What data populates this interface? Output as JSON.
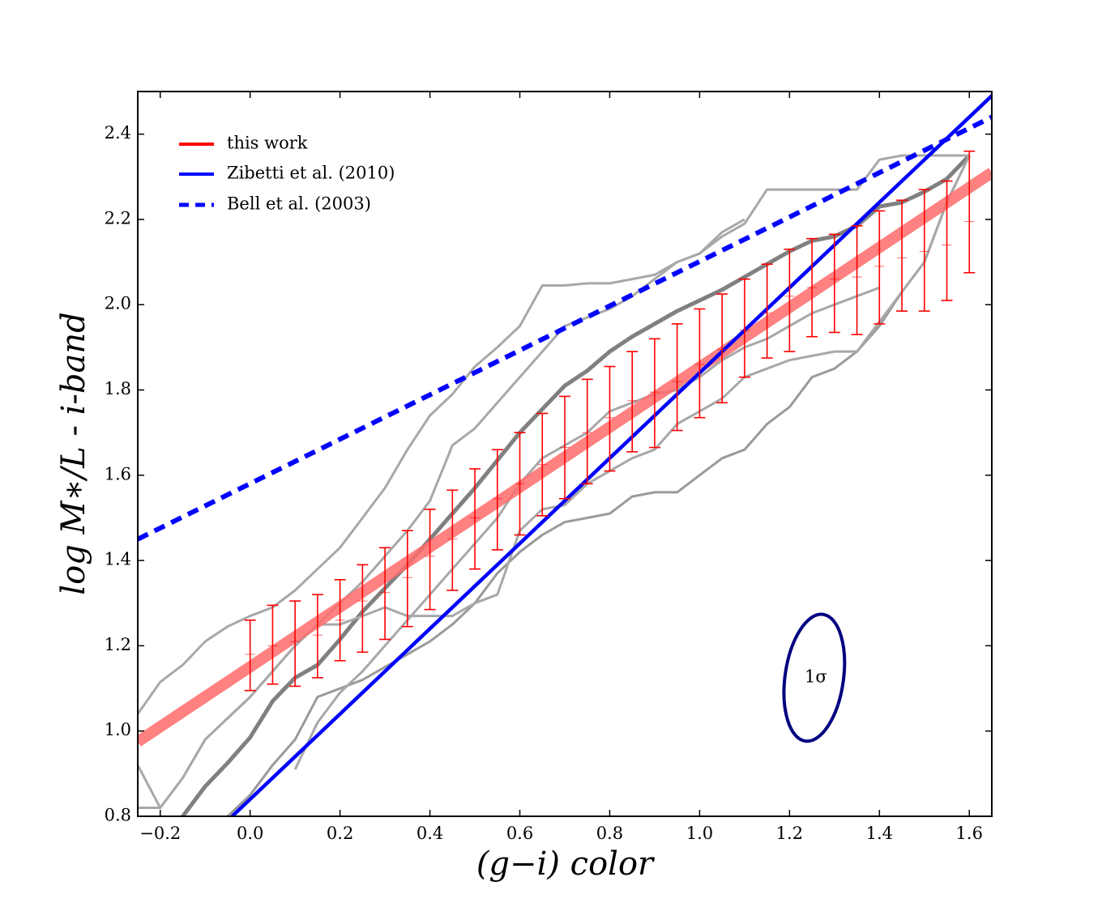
{
  "chart_data": {
    "type": "line",
    "title": "",
    "xlabel": "(g−i) color",
    "ylabel": "log M∗/L - i-band",
    "xlim": [
      -0.25,
      1.65
    ],
    "ylim": [
      0.8,
      2.5
    ],
    "xticks": [
      -0.2,
      0.0,
      0.2,
      0.4,
      0.6,
      0.8,
      1.0,
      1.2,
      1.4,
      1.6
    ],
    "xtick_labels": [
      "−0.2",
      "0.0",
      "0.2",
      "0.4",
      "0.6",
      "0.8",
      "1.0",
      "1.2",
      "1.4",
      "1.6"
    ],
    "yticks": [
      0.8,
      1.0,
      1.2,
      1.4,
      1.6,
      1.8,
      2.0,
      2.2,
      2.4
    ],
    "ytick_labels": [
      "0.8",
      "1.0",
      "1.2",
      "1.4",
      "1.6",
      "1.8",
      "2.0",
      "2.2",
      "2.4"
    ],
    "grid": false,
    "legend_position": "top-left",
    "legend": [
      {
        "label": "this work",
        "color": "#ff0000",
        "style": "solid"
      },
      {
        "label": "Zibetti et al. (2010)",
        "color": "#0000ff",
        "style": "solid"
      },
      {
        "label": "Bell et al. (2003)",
        "color": "#0000ff",
        "style": "dashed"
      }
    ],
    "series": [
      {
        "name": "this work",
        "kind": "fit",
        "color": "#ff6b6b",
        "x": [
          -0.25,
          1.65
        ],
        "y": [
          0.975,
          2.31
        ]
      },
      {
        "name": "Zibetti et al. (2010)",
        "kind": "line",
        "color": "#0000ff",
        "x": [
          -0.04,
          1.66
        ],
        "y": [
          0.8,
          2.5
        ]
      },
      {
        "name": "Bell et al. (2003)",
        "kind": "dashed",
        "color": "#0000ff",
        "x": [
          -0.25,
          1.65
        ],
        "y": [
          1.45,
          2.44
        ]
      }
    ],
    "error_bars": {
      "color": "#ff0000",
      "x": [
        0.0,
        0.05,
        0.1,
        0.15,
        0.2,
        0.25,
        0.3,
        0.35,
        0.4,
        0.45,
        0.5,
        0.55,
        0.6,
        0.65,
        0.7,
        0.75,
        0.8,
        0.85,
        0.9,
        0.95,
        1.0,
        1.05,
        1.1,
        1.15,
        1.2,
        1.25,
        1.3,
        1.35,
        1.4,
        1.45,
        1.5,
        1.55,
        1.6
      ],
      "center": [
        1.18,
        1.2,
        1.21,
        1.225,
        1.26,
        1.305,
        1.325,
        1.36,
        1.41,
        1.45,
        1.5,
        1.545,
        1.58,
        1.625,
        1.665,
        1.7,
        1.735,
        1.775,
        1.795,
        1.82,
        1.86,
        1.895,
        1.94,
        1.98,
        2.02,
        2.04,
        2.06,
        2.065,
        2.09,
        2.11,
        2.125,
        2.14,
        2.195
      ],
      "low": [
        1.095,
        1.11,
        1.105,
        1.125,
        1.165,
        1.185,
        1.215,
        1.245,
        1.285,
        1.33,
        1.38,
        1.425,
        1.46,
        1.505,
        1.545,
        1.58,
        1.61,
        1.655,
        1.665,
        1.705,
        1.735,
        1.77,
        1.83,
        1.875,
        1.89,
        1.925,
        1.935,
        1.93,
        1.955,
        1.985,
        1.985,
        2.01,
        2.075
      ],
      "high": [
        1.26,
        1.295,
        1.305,
        1.32,
        1.355,
        1.39,
        1.43,
        1.47,
        1.52,
        1.565,
        1.615,
        1.66,
        1.7,
        1.745,
        1.785,
        1.825,
        1.855,
        1.89,
        1.92,
        1.955,
        1.99,
        2.025,
        2.06,
        2.095,
        2.13,
        2.155,
        2.165,
        2.185,
        2.22,
        2.245,
        2.27,
        2.29,
        2.36
      ]
    },
    "contours": [
      {
        "name": "inner-upper",
        "color": "#808080",
        "width": 5,
        "x": [
          -0.25,
          -0.2,
          -0.15,
          -0.1,
          -0.05,
          0.0,
          0.05,
          0.1,
          0.15,
          0.2,
          0.25,
          0.3,
          0.35,
          0.4,
          0.45,
          0.5,
          0.55,
          0.6,
          0.65,
          0.7,
          0.75,
          0.8,
          0.85,
          0.9,
          0.95,
          1.0,
          1.05,
          1.1,
          1.15,
          1.2,
          1.25,
          1.3,
          1.35,
          1.4,
          1.45,
          1.5,
          1.55,
          1.6
        ],
        "y": [
          0.5,
          0.7,
          0.8,
          0.87,
          0.925,
          0.985,
          1.07,
          1.125,
          1.155,
          1.215,
          1.28,
          1.335,
          1.39,
          1.45,
          1.51,
          1.57,
          1.635,
          1.7,
          1.755,
          1.81,
          1.845,
          1.89,
          1.925,
          1.955,
          1.985,
          2.01,
          2.035,
          2.065,
          2.095,
          2.125,
          2.15,
          2.16,
          2.185,
          2.23,
          2.24,
          2.265,
          2.295,
          2.35
        ]
      },
      {
        "name": "inner-lower",
        "color": "#9a9a9a",
        "width": 3,
        "x": [
          -0.25,
          -0.2,
          -0.15,
          -0.1,
          -0.05,
          0.0,
          0.05,
          0.1,
          0.15,
          0.2,
          0.25,
          0.3,
          0.35,
          0.4,
          0.45,
          0.5,
          0.55,
          0.6,
          0.65,
          0.7,
          0.75,
          0.8,
          0.85,
          0.9,
          0.95,
          1.0,
          1.05,
          1.1,
          1.15,
          1.2,
          1.25,
          1.3,
          1.35,
          1.4,
          1.45,
          1.5,
          1.55,
          1.6
        ],
        "y": [
          0.5,
          0.6,
          0.7,
          0.75,
          0.8,
          0.85,
          0.92,
          0.98,
          1.08,
          1.1,
          1.12,
          1.15,
          1.18,
          1.21,
          1.25,
          1.3,
          1.37,
          1.42,
          1.46,
          1.49,
          1.5,
          1.51,
          1.55,
          1.56,
          1.56,
          1.6,
          1.64,
          1.66,
          1.72,
          1.76,
          1.83,
          1.85,
          1.89,
          1.95,
          2.03,
          2.1,
          2.24,
          2.35
        ]
      },
      {
        "name": "mid-upper",
        "color": "#a8a8a8",
        "width": 3,
        "x": [
          -0.25,
          -0.2,
          -0.15,
          -0.1,
          -0.05,
          0.0,
          0.05,
          0.1,
          0.15,
          0.2,
          0.25,
          0.3,
          0.35,
          0.4,
          0.45,
          0.5,
          0.55,
          0.6,
          0.65,
          0.7,
          0.75,
          0.8,
          0.85,
          0.9,
          0.95,
          1.0,
          1.05,
          1.1
        ],
        "y": [
          0.82,
          0.82,
          0.89,
          0.98,
          1.03,
          1.08,
          1.14,
          1.2,
          1.25,
          1.3,
          1.35,
          1.41,
          1.47,
          1.54,
          1.67,
          1.71,
          1.77,
          1.83,
          1.89,
          1.95,
          1.97,
          1.99,
          2.02,
          2.06,
          2.1,
          2.12,
          2.17,
          2.2
        ]
      },
      {
        "name": "outer-upper",
        "color": "#a8a8a8",
        "width": 3,
        "x": [
          -0.25,
          -0.2,
          -0.15,
          -0.1,
          -0.05,
          0.0,
          0.05,
          0.1,
          0.15,
          0.2,
          0.25,
          0.3,
          0.35,
          0.4,
          0.45,
          0.5,
          0.55,
          0.6,
          0.65,
          0.7,
          0.75,
          0.8,
          0.85,
          0.9,
          0.95,
          1.0,
          1.05,
          1.1,
          1.15,
          1.2,
          1.25,
          1.3,
          1.35,
          1.4,
          1.45,
          1.5,
          1.55,
          1.6
        ],
        "y": [
          1.04,
          1.115,
          1.155,
          1.21,
          1.245,
          1.27,
          1.29,
          1.33,
          1.38,
          1.43,
          1.5,
          1.57,
          1.66,
          1.74,
          1.79,
          1.855,
          1.9,
          1.95,
          2.045,
          2.045,
          2.05,
          2.05,
          2.06,
          2.07,
          2.1,
          2.12,
          2.16,
          2.19,
          2.27,
          2.27,
          2.27,
          2.27,
          2.27,
          2.34,
          2.35,
          2.35,
          2.35,
          2.35
        ]
      },
      {
        "name": "outer-lower",
        "color": "#a8a8a8",
        "width": 3,
        "x": [
          -0.25,
          -0.2,
          -0.15,
          -0.1,
          -0.05,
          0.0,
          0.05,
          0.1,
          0.15,
          0.2,
          0.25,
          0.3,
          0.35,
          0.4,
          0.45,
          0.5,
          0.55,
          0.6,
          0.65,
          0.7,
          0.75,
          0.8,
          0.85,
          0.9,
          0.95,
          1.0,
          1.05,
          1.1,
          1.15,
          1.2,
          1.25,
          1.3,
          1.35,
          1.4,
          1.45,
          1.5,
          1.55,
          1.6
        ],
        "y": [
          0.92,
          0.82,
          0.89,
          0.98,
          1.03,
          1.08,
          1.14,
          1.2,
          1.25,
          1.25,
          1.27,
          1.29,
          1.27,
          1.27,
          1.27,
          1.3,
          1.32,
          1.47,
          1.52,
          1.53,
          1.58,
          1.61,
          1.64,
          1.66,
          1.72,
          1.75,
          1.78,
          1.83,
          1.85,
          1.87,
          1.88,
          1.89,
          1.89,
          1.96,
          2.03,
          2.1,
          2.24,
          2.35
        ]
      },
      {
        "name": "mid-lower",
        "color": "#a8a8a8",
        "width": 3,
        "x": [
          0.1,
          0.15,
          0.2,
          0.25,
          0.3,
          0.35,
          0.4,
          0.45,
          0.5,
          0.55,
          0.6,
          0.65,
          0.7,
          0.75,
          0.8,
          0.85,
          0.9,
          0.95,
          1.0,
          1.05,
          1.1,
          1.15,
          1.2,
          1.25,
          1.3,
          1.35,
          1.4
        ],
        "y": [
          0.91,
          1.02,
          1.09,
          1.14,
          1.2,
          1.26,
          1.32,
          1.38,
          1.44,
          1.5,
          1.58,
          1.64,
          1.67,
          1.7,
          1.75,
          1.77,
          1.79,
          1.8,
          1.83,
          1.87,
          1.9,
          1.92,
          1.95,
          1.98,
          2.0,
          2.02,
          2.04
        ]
      }
    ],
    "annotation": {
      "text": "1σ",
      "color": "#000080",
      "center": [
        1.255,
        1.125
      ],
      "rx": 0.065,
      "ry": 0.15,
      "tilt_deg": 8
    }
  }
}
